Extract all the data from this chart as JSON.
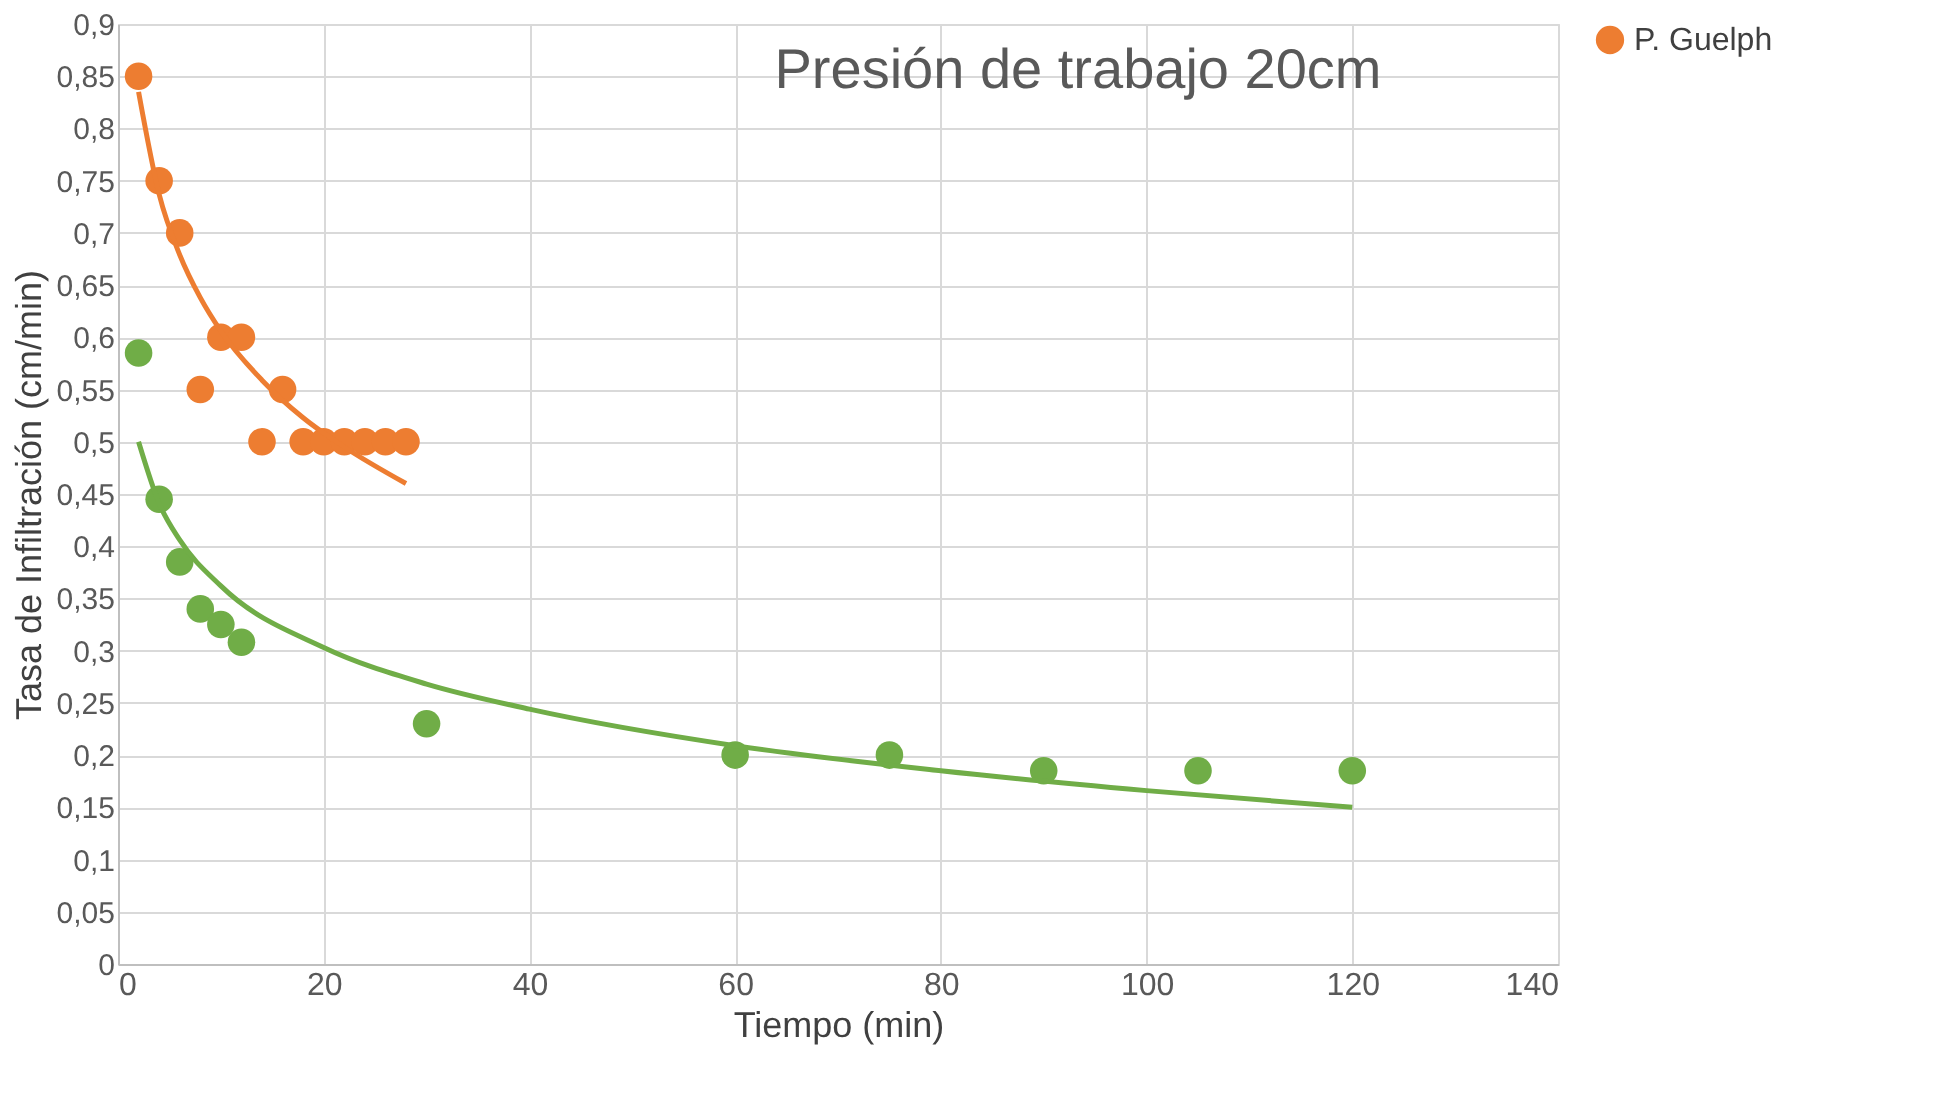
{
  "chart_data": {
    "type": "scatter",
    "title": "Presión de trabajo 20cm",
    "xlabel": "Tiempo (min)",
    "ylabel": "Tasa de Infiltración (cm/min)",
    "series": [
      {
        "name": "P. Guelph",
        "marker": "circle",
        "color": "#ed7d31",
        "x": [
          2,
          4,
          6,
          8,
          10,
          12,
          14,
          16,
          18,
          20,
          22,
          24,
          26,
          28
        ],
        "values": [
          0.85,
          0.75,
          0.7,
          0.55,
          0.6,
          0.6,
          0.5,
          0.55,
          0.5,
          0.5,
          0.5,
          0.5,
          0.5,
          0.5
        ]
      },
      {
        "marker": "circle",
        "color": "#70ad47",
        "x": [
          2,
          4,
          6,
          8,
          10,
          12,
          30,
          60,
          75,
          90,
          105,
          120
        ],
        "values": [
          0.585,
          0.445,
          0.385,
          0.34,
          0.325,
          0.308,
          0.23,
          0.2,
          0.2,
          0.185,
          0.185,
          0.185
        ]
      },
      {
        "type": "line",
        "marker": "none",
        "color": "#ed7d31",
        "x": [
          2,
          4,
          6,
          8,
          10,
          14,
          18,
          22,
          28
        ],
        "values": [
          0.835,
          0.737,
          0.679,
          0.638,
          0.606,
          0.559,
          0.523,
          0.495,
          0.46
        ]
      },
      {
        "type": "line",
        "marker": "none",
        "color": "#70ad47",
        "x": [
          2,
          4,
          6,
          10,
          20,
          30,
          40,
          60,
          80,
          100,
          120
        ],
        "values": [
          0.5,
          0.441,
          0.406,
          0.362,
          0.303,
          0.268,
          0.244,
          0.209,
          0.185,
          0.166,
          0.15
        ]
      }
    ],
    "xlim": [
      0,
      140
    ],
    "xticks": [
      0,
      20,
      40,
      60,
      80,
      100,
      120,
      140
    ],
    "ylim": [
      0,
      0.9
    ],
    "yticks": [
      0,
      {
        "value": 0.05,
        "label": "0,05"
      },
      {
        "value": 0.1,
        "label": "0,1"
      },
      {
        "value": 0.15,
        "label": "0,15"
      },
      {
        "value": 0.2,
        "label": "0,2"
      },
      {
        "value": 0.25,
        "label": "0,25"
      },
      {
        "value": 0.3,
        "label": "0,3"
      },
      {
        "value": 0.35,
        "label": "0,35"
      },
      {
        "value": 0.4,
        "label": "0,4"
      },
      {
        "value": 0.45,
        "label": "0,45"
      },
      {
        "value": 0.5,
        "label": "0,5"
      },
      {
        "value": 0.55,
        "label": "0,55"
      },
      {
        "value": 0.6,
        "label": "0,6"
      },
      {
        "value": 0.65,
        "label": "0,65"
      },
      {
        "value": 0.7,
        "label": "0,7"
      },
      {
        "value": 0.75,
        "label": "0,75"
      },
      {
        "value": 0.8,
        "label": "0,8"
      },
      {
        "value": 0.85,
        "label": "0,85"
      },
      {
        "value": 0.9,
        "label": "0,9"
      }
    ],
    "grid": true,
    "legend": "right"
  }
}
